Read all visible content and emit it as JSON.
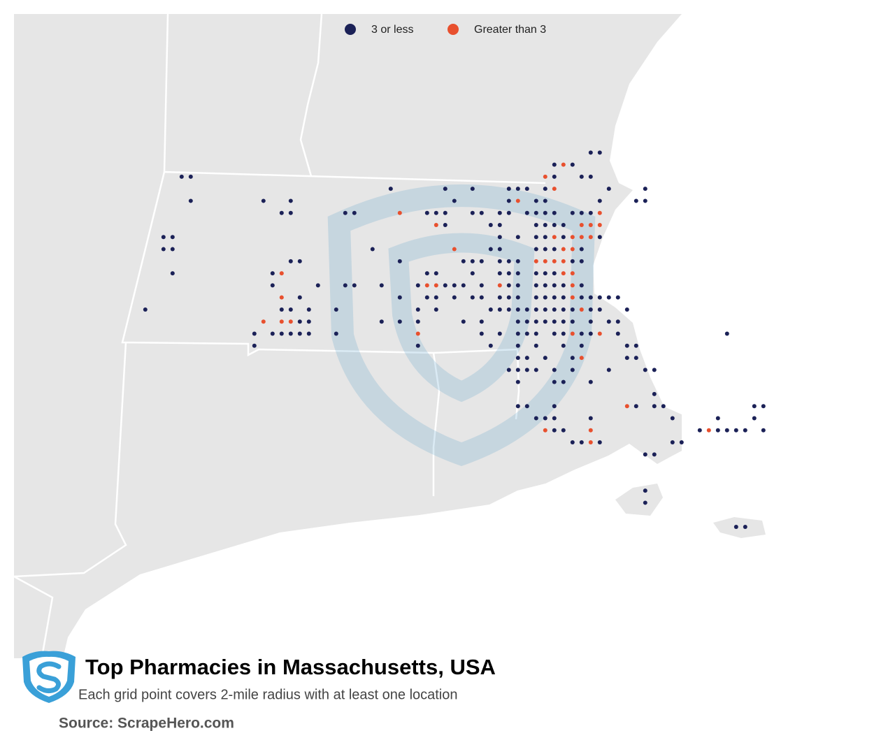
{
  "chart_data": {
    "type": "map",
    "title": "Top Pharmacies in Massachusetts, USA",
    "subtitle": "Each grid point covers 2-mile radius with at least one location",
    "source": "Source: ScrapeHero.com",
    "series": [
      {
        "name": "3 or less",
        "color": "#1b2157",
        "points": [
          [
            -71.02,
            42.98
          ],
          [
            -70.97,
            42.98
          ],
          [
            -71.22,
            42.92
          ],
          [
            -71.12,
            42.92
          ],
          [
            -73.27,
            42.86
          ],
          [
            -73.22,
            42.86
          ],
          [
            -71.22,
            42.86
          ],
          [
            -71.07,
            42.86
          ],
          [
            -71.02,
            42.86
          ],
          [
            -72.12,
            42.8
          ],
          [
            -71.82,
            42.8
          ],
          [
            -71.67,
            42.8
          ],
          [
            -71.47,
            42.8
          ],
          [
            -71.42,
            42.8
          ],
          [
            -71.37,
            42.8
          ],
          [
            -71.27,
            42.8
          ],
          [
            -70.92,
            42.8
          ],
          [
            -70.72,
            42.8
          ],
          [
            -73.22,
            42.74
          ],
          [
            -72.82,
            42.74
          ],
          [
            -72.67,
            42.74
          ],
          [
            -71.77,
            42.74
          ],
          [
            -71.47,
            42.74
          ],
          [
            -71.32,
            42.74
          ],
          [
            -71.27,
            42.74
          ],
          [
            -70.97,
            42.74
          ],
          [
            -70.77,
            42.74
          ],
          [
            -70.72,
            42.74
          ],
          [
            -72.72,
            42.68
          ],
          [
            -72.67,
            42.68
          ],
          [
            -72.37,
            42.68
          ],
          [
            -72.32,
            42.68
          ],
          [
            -71.92,
            42.68
          ],
          [
            -71.87,
            42.68
          ],
          [
            -71.82,
            42.68
          ],
          [
            -71.67,
            42.68
          ],
          [
            -71.62,
            42.68
          ],
          [
            -71.52,
            42.68
          ],
          [
            -71.47,
            42.68
          ],
          [
            -71.37,
            42.68
          ],
          [
            -71.32,
            42.68
          ],
          [
            -71.27,
            42.68
          ],
          [
            -71.22,
            42.68
          ],
          [
            -71.12,
            42.68
          ],
          [
            -71.07,
            42.68
          ],
          [
            -71.02,
            42.68
          ],
          [
            -71.82,
            42.62
          ],
          [
            -71.57,
            42.62
          ],
          [
            -71.52,
            42.62
          ],
          [
            -71.32,
            42.62
          ],
          [
            -71.27,
            42.62
          ],
          [
            -71.22,
            42.62
          ],
          [
            -71.17,
            42.62
          ],
          [
            -73.37,
            42.56
          ],
          [
            -73.32,
            42.56
          ],
          [
            -71.52,
            42.56
          ],
          [
            -71.42,
            42.56
          ],
          [
            -71.32,
            42.56
          ],
          [
            -71.27,
            42.56
          ],
          [
            -71.17,
            42.56
          ],
          [
            -70.97,
            42.56
          ],
          [
            -73.37,
            42.5
          ],
          [
            -73.32,
            42.5
          ],
          [
            -72.22,
            42.5
          ],
          [
            -71.57,
            42.5
          ],
          [
            -71.52,
            42.5
          ],
          [
            -71.32,
            42.5
          ],
          [
            -71.27,
            42.5
          ],
          [
            -71.22,
            42.5
          ],
          [
            -71.07,
            42.5
          ],
          [
            -72.67,
            42.44
          ],
          [
            -72.62,
            42.44
          ],
          [
            -72.07,
            42.44
          ],
          [
            -71.72,
            42.44
          ],
          [
            -71.67,
            42.44
          ],
          [
            -71.62,
            42.44
          ],
          [
            -71.52,
            42.44
          ],
          [
            -71.47,
            42.44
          ],
          [
            -71.42,
            42.44
          ],
          [
            -71.12,
            42.44
          ],
          [
            -71.07,
            42.44
          ],
          [
            -73.32,
            42.38
          ],
          [
            -72.77,
            42.38
          ],
          [
            -71.92,
            42.38
          ],
          [
            -71.87,
            42.38
          ],
          [
            -71.67,
            42.38
          ],
          [
            -71.52,
            42.38
          ],
          [
            -71.47,
            42.38
          ],
          [
            -71.42,
            42.38
          ],
          [
            -71.32,
            42.38
          ],
          [
            -71.27,
            42.38
          ],
          [
            -71.22,
            42.38
          ],
          [
            -72.77,
            42.32
          ],
          [
            -72.52,
            42.32
          ],
          [
            -72.37,
            42.32
          ],
          [
            -72.32,
            42.32
          ],
          [
            -72.17,
            42.32
          ],
          [
            -71.97,
            42.32
          ],
          [
            -71.82,
            42.32
          ],
          [
            -71.77,
            42.32
          ],
          [
            -71.72,
            42.32
          ],
          [
            -71.62,
            42.32
          ],
          [
            -71.47,
            42.32
          ],
          [
            -71.42,
            42.32
          ],
          [
            -71.32,
            42.32
          ],
          [
            -71.27,
            42.32
          ],
          [
            -71.22,
            42.32
          ],
          [
            -71.17,
            42.32
          ],
          [
            -71.07,
            42.32
          ],
          [
            -72.62,
            42.26
          ],
          [
            -72.07,
            42.26
          ],
          [
            -71.92,
            42.26
          ],
          [
            -71.87,
            42.26
          ],
          [
            -71.77,
            42.26
          ],
          [
            -71.67,
            42.26
          ],
          [
            -71.62,
            42.26
          ],
          [
            -71.52,
            42.26
          ],
          [
            -71.47,
            42.26
          ],
          [
            -71.42,
            42.26
          ],
          [
            -71.32,
            42.26
          ],
          [
            -71.27,
            42.26
          ],
          [
            -71.22,
            42.26
          ],
          [
            -71.17,
            42.26
          ],
          [
            -71.07,
            42.26
          ],
          [
            -71.02,
            42.26
          ],
          [
            -70.97,
            42.26
          ],
          [
            -70.92,
            42.26
          ],
          [
            -70.87,
            42.26
          ],
          [
            -73.47,
            42.2
          ],
          [
            -72.72,
            42.2
          ],
          [
            -72.67,
            42.2
          ],
          [
            -72.57,
            42.2
          ],
          [
            -72.42,
            42.2
          ],
          [
            -71.97,
            42.2
          ],
          [
            -71.87,
            42.2
          ],
          [
            -71.57,
            42.2
          ],
          [
            -71.52,
            42.2
          ],
          [
            -71.47,
            42.2
          ],
          [
            -71.42,
            42.2
          ],
          [
            -71.37,
            42.2
          ],
          [
            -71.32,
            42.2
          ],
          [
            -71.27,
            42.2
          ],
          [
            -71.22,
            42.2
          ],
          [
            -71.17,
            42.2
          ],
          [
            -71.12,
            42.2
          ],
          [
            -71.02,
            42.2
          ],
          [
            -70.97,
            42.2
          ],
          [
            -70.82,
            42.2
          ],
          [
            -72.62,
            42.14
          ],
          [
            -72.57,
            42.14
          ],
          [
            -72.17,
            42.14
          ],
          [
            -72.07,
            42.14
          ],
          [
            -71.97,
            42.14
          ],
          [
            -71.72,
            42.14
          ],
          [
            -71.62,
            42.14
          ],
          [
            -71.42,
            42.14
          ],
          [
            -71.37,
            42.14
          ],
          [
            -71.32,
            42.14
          ],
          [
            -71.27,
            42.14
          ],
          [
            -71.22,
            42.14
          ],
          [
            -71.17,
            42.14
          ],
          [
            -71.12,
            42.14
          ],
          [
            -71.02,
            42.14
          ],
          [
            -70.92,
            42.14
          ],
          [
            -70.87,
            42.14
          ],
          [
            -72.87,
            42.08
          ],
          [
            -72.77,
            42.08
          ],
          [
            -72.72,
            42.08
          ],
          [
            -72.67,
            42.08
          ],
          [
            -72.62,
            42.08
          ],
          [
            -72.57,
            42.08
          ],
          [
            -72.42,
            42.08
          ],
          [
            -71.62,
            42.08
          ],
          [
            -71.52,
            42.08
          ],
          [
            -71.42,
            42.08
          ],
          [
            -71.37,
            42.08
          ],
          [
            -71.32,
            42.08
          ],
          [
            -71.22,
            42.08
          ],
          [
            -71.17,
            42.08
          ],
          [
            -71.07,
            42.08
          ],
          [
            -71.02,
            42.08
          ],
          [
            -70.87,
            42.08
          ],
          [
            -70.27,
            42.08
          ],
          [
            -72.87,
            42.02
          ],
          [
            -71.97,
            42.02
          ],
          [
            -71.57,
            42.02
          ],
          [
            -71.42,
            42.02
          ],
          [
            -71.32,
            42.02
          ],
          [
            -71.17,
            42.02
          ],
          [
            -71.07,
            42.02
          ],
          [
            -70.82,
            42.02
          ],
          [
            -70.77,
            42.02
          ],
          [
            -71.42,
            41.96
          ],
          [
            -71.37,
            41.96
          ],
          [
            -71.27,
            41.96
          ],
          [
            -71.12,
            41.96
          ],
          [
            -70.82,
            41.96
          ],
          [
            -70.77,
            41.96
          ],
          [
            -71.47,
            41.9
          ],
          [
            -71.42,
            41.9
          ],
          [
            -71.37,
            41.9
          ],
          [
            -71.32,
            41.9
          ],
          [
            -71.22,
            41.9
          ],
          [
            -71.12,
            41.9
          ],
          [
            -70.92,
            41.9
          ],
          [
            -70.72,
            41.9
          ],
          [
            -70.67,
            41.9
          ],
          [
            -71.42,
            41.84
          ],
          [
            -71.22,
            41.84
          ],
          [
            -71.17,
            41.84
          ],
          [
            -71.02,
            41.84
          ],
          [
            -70.67,
            41.78
          ],
          [
            -71.42,
            41.72
          ],
          [
            -71.37,
            41.72
          ],
          [
            -71.22,
            41.72
          ],
          [
            -70.77,
            41.72
          ],
          [
            -70.67,
            41.72
          ],
          [
            -70.62,
            41.72
          ],
          [
            -70.12,
            41.72
          ],
          [
            -70.07,
            41.72
          ],
          [
            -71.32,
            41.66
          ],
          [
            -71.27,
            41.66
          ],
          [
            -71.22,
            41.66
          ],
          [
            -71.02,
            41.66
          ],
          [
            -70.57,
            41.66
          ],
          [
            -70.32,
            41.66
          ],
          [
            -70.12,
            41.66
          ],
          [
            -71.22,
            41.6
          ],
          [
            -71.17,
            41.6
          ],
          [
            -70.42,
            41.6
          ],
          [
            -70.32,
            41.6
          ],
          [
            -70.27,
            41.6
          ],
          [
            -70.22,
            41.6
          ],
          [
            -70.17,
            41.6
          ],
          [
            -70.07,
            41.6
          ],
          [
            -71.12,
            41.54
          ],
          [
            -71.07,
            41.54
          ],
          [
            -70.97,
            41.54
          ],
          [
            -70.57,
            41.54
          ],
          [
            -70.52,
            41.54
          ],
          [
            -70.72,
            41.48
          ],
          [
            -70.67,
            41.48
          ],
          [
            -70.72,
            41.3
          ],
          [
            -70.72,
            41.24
          ],
          [
            -70.22,
            41.12
          ],
          [
            -70.17,
            41.12
          ]
        ]
      },
      {
        "name": "Greater than 3",
        "color": "#e8502e",
        "points": [
          [
            -71.17,
            42.92
          ],
          [
            -71.27,
            42.86
          ],
          [
            -71.22,
            42.8
          ],
          [
            -71.42,
            42.74
          ],
          [
            -72.07,
            42.68
          ],
          [
            -70.97,
            42.68
          ],
          [
            -71.87,
            42.62
          ],
          [
            -71.07,
            42.62
          ],
          [
            -71.02,
            42.62
          ],
          [
            -70.97,
            42.62
          ],
          [
            -71.22,
            42.56
          ],
          [
            -71.12,
            42.56
          ],
          [
            -71.07,
            42.56
          ],
          [
            -71.02,
            42.56
          ],
          [
            -71.77,
            42.5
          ],
          [
            -71.17,
            42.5
          ],
          [
            -71.12,
            42.5
          ],
          [
            -71.32,
            42.44
          ],
          [
            -71.27,
            42.44
          ],
          [
            -71.22,
            42.44
          ],
          [
            -71.17,
            42.44
          ],
          [
            -72.72,
            42.38
          ],
          [
            -71.17,
            42.38
          ],
          [
            -71.12,
            42.38
          ],
          [
            -71.92,
            42.32
          ],
          [
            -71.87,
            42.32
          ],
          [
            -71.52,
            42.32
          ],
          [
            -71.12,
            42.32
          ],
          [
            -72.72,
            42.26
          ],
          [
            -71.12,
            42.26
          ],
          [
            -71.07,
            42.2
          ],
          [
            -72.82,
            42.14
          ],
          [
            -72.72,
            42.14
          ],
          [
            -72.67,
            42.14
          ],
          [
            -71.97,
            42.08
          ],
          [
            -71.12,
            42.08
          ],
          [
            -70.97,
            42.08
          ],
          [
            -71.07,
            41.96
          ],
          [
            -70.82,
            41.72
          ],
          [
            -71.27,
            41.6
          ],
          [
            -71.02,
            41.6
          ],
          [
            -70.37,
            41.6
          ],
          [
            -71.02,
            41.54
          ]
        ]
      }
    ]
  }
}
